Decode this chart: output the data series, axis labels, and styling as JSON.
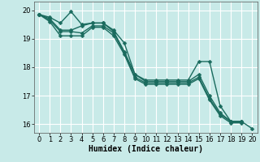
{
  "background_color": "#c8eae8",
  "grid_color": "#ffffff",
  "line_color": "#1a6b5e",
  "marker": "D",
  "markersize": 2.5,
  "linewidth": 1.0,
  "xlabel": "Humidex (Indice chaleur)",
  "xlabel_fontsize": 7,
  "tick_fontsize": 6,
  "xlim": [
    -0.5,
    20.5
  ],
  "ylim": [
    15.7,
    20.3
  ],
  "yticks": [
    16,
    17,
    18,
    19,
    20
  ],
  "xticks": [
    0,
    1,
    2,
    3,
    4,
    5,
    6,
    7,
    8,
    9,
    10,
    11,
    12,
    13,
    14,
    15,
    16,
    17,
    18,
    19,
    20
  ],
  "series": [
    [
      19.85,
      19.75,
      19.55,
      19.95,
      19.5,
      19.55,
      19.55,
      19.3,
      18.85,
      17.75,
      17.55,
      17.55,
      17.55,
      17.55,
      17.55,
      18.2,
      18.2,
      16.65,
      16.1,
      16.1,
      15.85
    ],
    [
      19.85,
      19.7,
      19.3,
      19.3,
      19.45,
      19.55,
      19.55,
      19.25,
      18.55,
      17.75,
      17.5,
      17.5,
      17.5,
      17.5,
      17.5,
      17.75,
      17.0,
      16.4,
      16.1,
      16.1,
      null
    ],
    [
      19.85,
      19.65,
      19.25,
      19.25,
      19.2,
      19.45,
      19.45,
      19.2,
      18.5,
      17.65,
      17.45,
      17.45,
      17.45,
      17.45,
      17.45,
      17.65,
      16.9,
      16.35,
      16.1,
      16.1,
      null
    ],
    [
      19.85,
      19.6,
      19.1,
      19.1,
      19.1,
      19.4,
      19.4,
      19.1,
      18.45,
      17.6,
      17.4,
      17.4,
      17.4,
      17.4,
      17.4,
      17.6,
      16.85,
      16.3,
      16.05,
      16.05,
      null
    ]
  ]
}
